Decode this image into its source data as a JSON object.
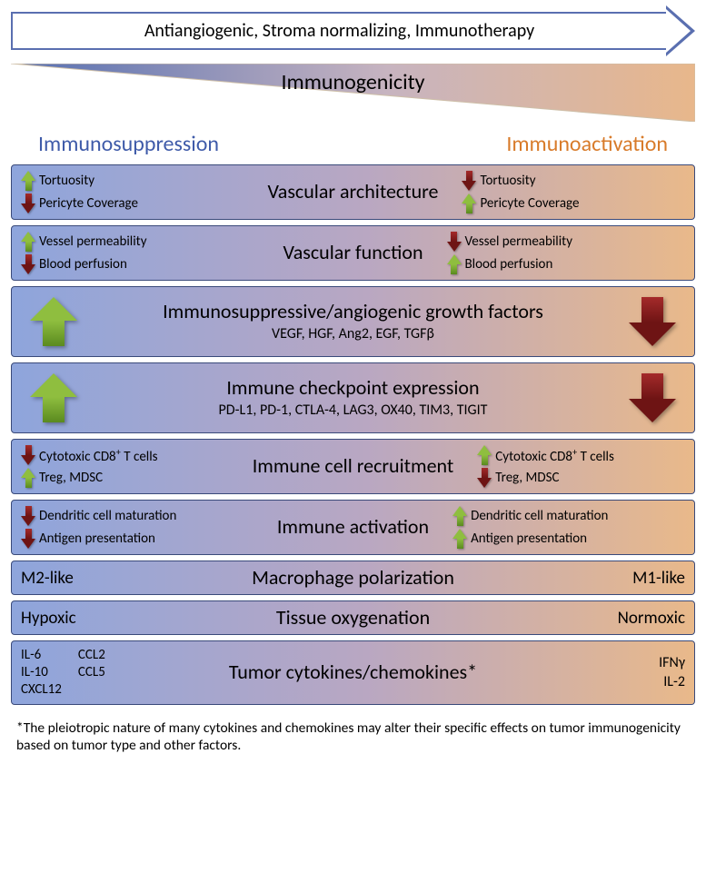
{
  "colors": {
    "row_border": "#3a4a7a",
    "blue_side": "#8ea5dc",
    "orange_side": "#e9b98a",
    "mid": "#b9a7c2",
    "green_arrow": "#8fbe3f",
    "green_arrow_dark": "#5a8a1f",
    "red_arrow": "#a52a2a",
    "red_arrow_dark": "#6e1414",
    "head_blue": "#3f5ba9",
    "head_orange": "#d87b2a",
    "wedge_blue": "#556fb2",
    "wedge_orange": "#e8b78b"
  },
  "header": {
    "arrow_text": "Antiangiogenic, Stroma normalizing, Immunotherapy",
    "wedge_label": "Immunogenicity",
    "left_head": "Immunosuppression",
    "right_head": "Immunoactivation"
  },
  "rows": [
    {
      "title": "Vascular architecture",
      "left": [
        {
          "dir": "up",
          "color": "green",
          "text": "Tortuosity"
        },
        {
          "dir": "down",
          "color": "red",
          "text": "Pericyte Coverage"
        }
      ],
      "right": [
        {
          "dir": "down",
          "color": "red",
          "text": "Tortuosity"
        },
        {
          "dir": "up",
          "color": "green",
          "text": "Pericyte Coverage"
        }
      ]
    },
    {
      "title": "Vascular function",
      "left": [
        {
          "dir": "up",
          "color": "green",
          "text": "Vessel permeability"
        },
        {
          "dir": "down",
          "color": "red",
          "text": "Blood perfusion"
        }
      ],
      "right": [
        {
          "dir": "down",
          "color": "red",
          "text": "Vessel permeability"
        },
        {
          "dir": "up",
          "color": "green",
          "text": "Blood perfusion"
        }
      ]
    },
    {
      "title": "Immunosuppressive/angiogenic growth factors",
      "sub": "VEGF, HGF, Ang2, EGF, TGFβ",
      "big_left": {
        "dir": "up",
        "color": "green"
      },
      "big_right": {
        "dir": "down",
        "color": "red"
      }
    },
    {
      "title": "Immune checkpoint expression",
      "sub": "PD-L1, PD-1, CTLA-4, LAG3, OX40, TIM3, TIGIT",
      "big_left": {
        "dir": "up",
        "color": "green"
      },
      "big_right": {
        "dir": "down",
        "color": "red"
      }
    },
    {
      "title": "Immune cell recruitment",
      "left": [
        {
          "dir": "down",
          "color": "red",
          "text_html": "Cytotoxic CD8<sup>+</sup> T cells"
        },
        {
          "dir": "up",
          "color": "green",
          "text": "Treg, MDSC"
        }
      ],
      "right": [
        {
          "dir": "up",
          "color": "green",
          "text_html": "Cytotoxic CD8<sup>+</sup> T cells"
        },
        {
          "dir": "down",
          "color": "red",
          "text": "Treg, MDSC"
        }
      ]
    },
    {
      "title": "Immune activation",
      "left": [
        {
          "dir": "down",
          "color": "red",
          "text": "Dendritic cell maturation"
        },
        {
          "dir": "down",
          "color": "red",
          "text": "Antigen presentation"
        }
      ],
      "right": [
        {
          "dir": "up",
          "color": "green",
          "text": "Dendritic cell maturation"
        },
        {
          "dir": "up",
          "color": "green",
          "text": "Antigen presentation"
        }
      ]
    },
    {
      "title": "Macrophage polarization",
      "simple_left": "M2-like",
      "simple_right": "M1-like"
    },
    {
      "title": "Tissue oxygenation",
      "simple_left": "Hypoxic",
      "simple_right": "Normoxic"
    },
    {
      "title": "Tumor cytokines/chemokines*",
      "cyto_left_col1": [
        "IL-6",
        "IL-10",
        "CXCL12"
      ],
      "cyto_left_col2": [
        "CCL2",
        "CCL5"
      ],
      "cyto_right": [
        "IFNγ",
        "IL-2"
      ]
    }
  ],
  "footnote": "*The pleiotropic nature of many cytokines and chemokines may alter their specific effects on tumor immunogenicity based on tumor type and other factors."
}
